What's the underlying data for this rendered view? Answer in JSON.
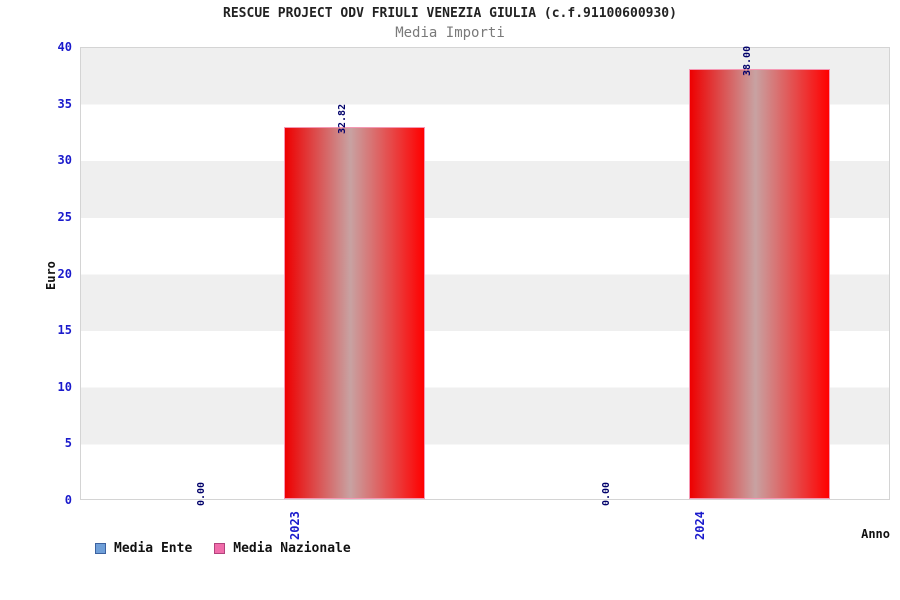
{
  "chart_data": {
    "type": "bar",
    "title": "RESCUE PROJECT ODV FRIULI VENEZIA GIULIA (c.f.91100600930)",
    "subtitle": "Media Importi",
    "xlabel": "Anno",
    "ylabel": "Euro",
    "categories": [
      "2023",
      "2024"
    ],
    "series": [
      {
        "name": "Media Ente",
        "values": [
          0.0,
          0.0
        ],
        "value_labels": [
          "0.00",
          "0.00"
        ],
        "swatch_color": "#6f9fd8",
        "swatch_border": "#3c62a0"
      },
      {
        "name": "Media Nazionale",
        "values": [
          32.82,
          38.0
        ],
        "value_labels": [
          "32.82",
          "38.00"
        ],
        "swatch_color": "#f06caa",
        "swatch_border": "#b2437c",
        "bar_gradient": [
          "#ee0000",
          "#c8a2a2",
          "#ff0000"
        ],
        "bar_border": "#f598b4"
      }
    ],
    "ylim": [
      0,
      40
    ],
    "ytick_step": 5,
    "yticks": [
      0,
      5,
      10,
      15,
      20,
      25,
      30,
      35,
      40
    ],
    "band_colors": [
      "#efefef",
      "#ffffff"
    ],
    "grid": true,
    "legend_position": "bottom-left",
    "tick_label_color": "#1a1acc",
    "value_label_color": "#00006a"
  }
}
